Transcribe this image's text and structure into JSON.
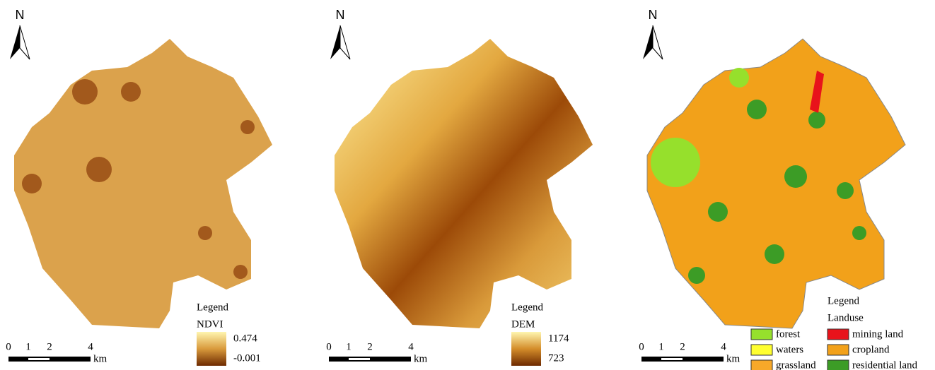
{
  "panels": [
    {
      "north": "N",
      "scale": {
        "ticks": [
          0,
          1,
          2,
          4
        ],
        "unit": "km"
      },
      "legend": {
        "title": "Legend",
        "layer": "NDVI",
        "high": 0.474,
        "low": -0.001
      }
    },
    {
      "north": "N",
      "scale": {
        "ticks": [
          0,
          1,
          2,
          4
        ],
        "unit": "km"
      },
      "legend": {
        "title": "Legend",
        "layer": "DEM",
        "high": 1174,
        "low": 723
      }
    },
    {
      "north": "N",
      "scale": {
        "ticks": [
          0,
          1,
          2,
          4
        ],
        "unit": "km"
      },
      "legend": {
        "title": "Legend",
        "layer": "Landuse",
        "items": [
          {
            "label": "forest",
            "color": "#96e02c"
          },
          {
            "label": "waters",
            "color": "#ffff30"
          },
          {
            "label": "grassland",
            "color": "#f7a829"
          },
          {
            "label": "mining land",
            "color": "#e8131b"
          },
          {
            "label": "cropland",
            "color": "#f2a11a"
          },
          {
            "label": "residential land",
            "color": "#3c9c26"
          }
        ]
      }
    }
  ]
}
